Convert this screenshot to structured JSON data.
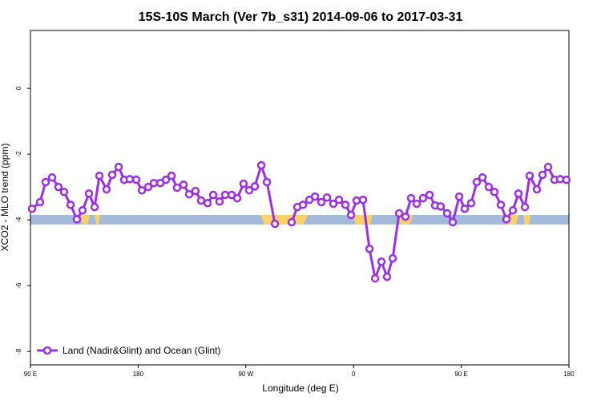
{
  "chart_data": {
    "type": "line",
    "title": "15S-10S March (Ver 7b_s31)   2014-09-06 to 2017-03-31",
    "x_label": "Longitude (deg E)",
    "y_label": "XCO2 - MLO trend (ppm)",
    "x": [
      91.3,
      98.0,
      102.7,
      108.1,
      113.4,
      118.1,
      123.5,
      128.8,
      133.5,
      138.9,
      143.6,
      147.6,
      153.6,
      158.3,
      163.7,
      168.3,
      173.0,
      178.4,
      183.1,
      188.4,
      193.1,
      198.5,
      203.2,
      207.9,
      212.5,
      217.9,
      222.6,
      227.9,
      232.6,
      238.0,
      242.7,
      248.0,
      252.7,
      258.1,
      262.8,
      268.1,
      272.8,
      277.5,
      282.9,
      287.6,
      294.3,
      301.3,
      308.3,
      313.0,
      317.7,
      323.1,
      327.8,
      333.1,
      337.8,
      343.1,
      347.8,
      353.2,
      357.9,
      362.5,
      367.9,
      373.3,
      378.0,
      383.3,
      388.0,
      392.7,
      398.1,
      403.4,
      408.1,
      412.8,
      418.1,
      423.5,
      428.2,
      432.8,
      438.2,
      442.9,
      448.3,
      452.9,
      458.3,
      463.0,
      467.7,
      473.0,
      477.7,
      483.1,
      487.8,
      493.1,
      497.8,
      503.2,
      507.2,
      513.2,
      517.9,
      522.6,
      527.9,
      532.6,
      537.9
    ],
    "series": [
      {
        "name": "Land (Nadir&Glint) and Ocean (Glint)",
        "color": "#9b30e0",
        "values": [
          -3.66,
          -3.46,
          -2.85,
          -2.71,
          -3.0,
          -3.15,
          -3.54,
          -3.98,
          -3.71,
          -3.2,
          -3.61,
          -2.66,
          -3.07,
          -2.63,
          -2.39,
          -2.78,
          -2.76,
          -2.78,
          -3.1,
          -3.0,
          -2.88,
          -2.88,
          -2.78,
          -2.66,
          -3.02,
          -2.93,
          -3.22,
          -3.12,
          -3.41,
          -3.49,
          -3.24,
          -3.44,
          -3.24,
          -3.24,
          -3.34,
          -2.9,
          -3.1,
          -2.98,
          -2.34,
          -2.85,
          -4.12,
          null,
          -4.07,
          -3.61,
          -3.54,
          -3.39,
          -3.29,
          -3.46,
          -3.32,
          -3.51,
          -3.39,
          -3.54,
          -3.85,
          -3.41,
          -3.39,
          -4.88,
          -5.78,
          -5.27,
          -5.73,
          -5.17,
          -3.8,
          -3.9,
          -3.34,
          -3.51,
          -3.34,
          -3.24,
          -3.56,
          -3.59,
          -3.8,
          -4.07,
          -3.29,
          -3.66,
          -3.49,
          -2.85,
          -2.71,
          -3.0,
          -3.15,
          -3.54,
          -3.98,
          -3.71,
          -3.2,
          -3.61,
          -2.66,
          -3.07,
          -2.63,
          -2.39,
          -2.78,
          -2.76,
          -2.78
        ]
      }
    ],
    "xlim": [
      90,
      540
    ],
    "ylim": [
      -8.41,
      1.76
    ],
    "xticks": [
      {
        "value": 90,
        "label": "90 E"
      },
      180,
      {
        "value": 270,
        "label": "90 W"
      },
      {
        "value": 360,
        "label": "0"
      },
      {
        "value": 450,
        "label": "90 E"
      },
      {
        "value": 540,
        "label": "180"
      }
    ],
    "yticks": [
      0,
      -2,
      -4,
      -6,
      -8
    ],
    "legend": "lower left"
  }
}
